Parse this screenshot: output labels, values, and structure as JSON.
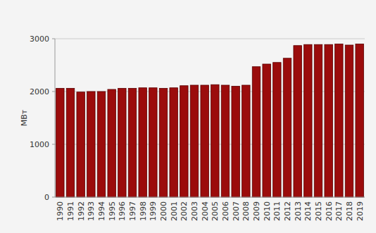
{
  "chart_data": {
    "type": "bar",
    "y_label": "МВт",
    "categories": [
      "1990",
      "1991",
      "1992",
      "1993",
      "1994",
      "1995",
      "1996",
      "1997",
      "1998",
      "1999",
      "2000",
      "2001",
      "2002",
      "2003",
      "2004",
      "2005",
      "2006",
      "2007",
      "2008",
      "2009",
      "2010",
      "2011",
      "2012",
      "2013",
      "2014",
      "2015",
      "2016",
      "2017",
      "2018",
      "2019"
    ],
    "values": [
      2060,
      2060,
      1990,
      2000,
      2000,
      2040,
      2060,
      2060,
      2070,
      2070,
      2060,
      2070,
      2110,
      2120,
      2120,
      2130,
      2120,
      2100,
      2120,
      2470,
      2520,
      2550,
      2630,
      2870,
      2890,
      2890,
      2890,
      2900,
      2880,
      2900
    ],
    "color": "#9b0c0c",
    "ylim": [
      0,
      3000
    ],
    "yticks": [
      0,
      1000,
      2000,
      3000
    ],
    "grid": true
  }
}
